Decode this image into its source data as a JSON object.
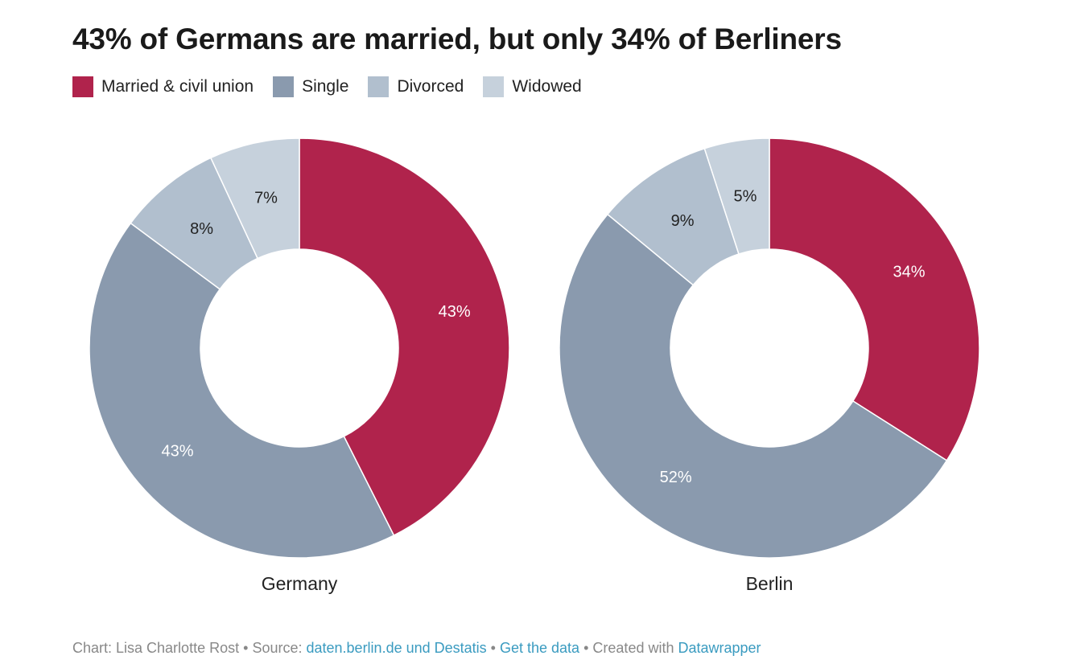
{
  "title": "43% of Germans are married, but only 34% of Berliners",
  "legend": [
    {
      "label": "Married & civil union",
      "color": "#b0234c"
    },
    {
      "label": "Single",
      "color": "#8a9aae"
    },
    {
      "label": "Divorced",
      "color": "#b1bfce"
    },
    {
      "label": "Widowed",
      "color": "#c6d1dc"
    }
  ],
  "chart_data": [
    {
      "type": "pie",
      "title": "Germany",
      "categories": [
        "Married & civil union",
        "Single",
        "Divorced",
        "Widowed"
      ],
      "values": [
        43,
        43,
        8,
        7
      ],
      "labels": [
        "43%",
        "43%",
        "8%",
        "7%"
      ],
      "colors": [
        "#b0234c",
        "#8a9aae",
        "#b1bfce",
        "#c6d1dc"
      ],
      "label_colors": [
        "#ffffff",
        "#ffffff",
        "#222222",
        "#222222"
      ],
      "donut": true
    },
    {
      "type": "pie",
      "title": "Berlin",
      "categories": [
        "Married & civil union",
        "Single",
        "Divorced",
        "Widowed"
      ],
      "values": [
        34,
        52,
        9,
        5
      ],
      "labels": [
        "34%",
        "52%",
        "9%",
        "5%"
      ],
      "colors": [
        "#b0234c",
        "#8a9aae",
        "#b1bfce",
        "#c6d1dc"
      ],
      "label_colors": [
        "#ffffff",
        "#ffffff",
        "#222222",
        "#222222"
      ],
      "donut": true
    }
  ],
  "footer": {
    "prefix": "Chart: Lisa Charlotte Rost",
    "source_label": "Source:",
    "source_link": "daten.berlin.de und Destatis",
    "get_data": "Get the data",
    "created_with": "Created with",
    "tool_link": "Datawrapper",
    "separator": "•"
  }
}
